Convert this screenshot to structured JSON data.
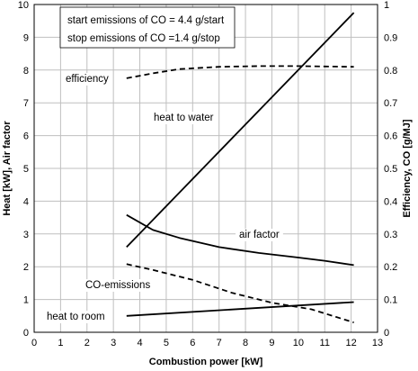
{
  "chart_data": {
    "type": "line",
    "xlabel": "Combustion power [kW]",
    "ylabel_left": "Heat [kW], Air factor",
    "ylabel_right": "Efficiency, CO [g/MJ]",
    "xlim": [
      0,
      13
    ],
    "ylim_left": [
      0,
      10
    ],
    "ylim_right": [
      0,
      1
    ],
    "x_ticks": [
      "0",
      "1",
      "2",
      "3",
      "4",
      "5",
      "6",
      "7",
      "8",
      "9",
      "10",
      "11",
      "12",
      "13"
    ],
    "y_ticks_left": [
      "0",
      "1",
      "2",
      "3",
      "4",
      "5",
      "6",
      "7",
      "8",
      "9",
      "10"
    ],
    "y_ticks_right": [
      "0",
      "0.1",
      "0.2",
      "0.3",
      "0.4",
      "0.5",
      "0.6",
      "0.7",
      "0.8",
      "0.9",
      "1"
    ],
    "grid": true,
    "info_box": [
      "start emissions of CO = 4.4 g/start",
      "stop emissions of CO =1.4 g/stop"
    ],
    "series": [
      {
        "name": "heat to water",
        "axis": "left",
        "style": "solid",
        "x": [
          3.5,
          12.1
        ],
        "y": [
          2.6,
          9.75
        ]
      },
      {
        "name": "air factor",
        "axis": "left",
        "style": "solid",
        "x": [
          3.5,
          4.5,
          5.5,
          7,
          8.5,
          10,
          11,
          12.1
        ],
        "y": [
          3.58,
          3.12,
          2.88,
          2.6,
          2.42,
          2.28,
          2.18,
          2.05
        ]
      },
      {
        "name": "heat to room",
        "axis": "left",
        "style": "solid",
        "x": [
          3.5,
          12.1
        ],
        "y": [
          0.5,
          0.92
        ]
      },
      {
        "name": "efficiency",
        "axis": "right",
        "style": "dashed",
        "x": [
          3.5,
          4.5,
          5.5,
          7,
          8.5,
          10,
          11,
          12.1
        ],
        "y": [
          0.775,
          0.79,
          0.803,
          0.81,
          0.812,
          0.812,
          0.811,
          0.81
        ]
      },
      {
        "name": "CO-emissions",
        "axis": "right",
        "style": "dashed",
        "x": [
          3.5,
          4.5,
          6,
          7.5,
          9,
          10.5,
          12.1
        ],
        "y": [
          0.208,
          0.19,
          0.16,
          0.12,
          0.09,
          0.07,
          0.03
        ]
      }
    ]
  }
}
